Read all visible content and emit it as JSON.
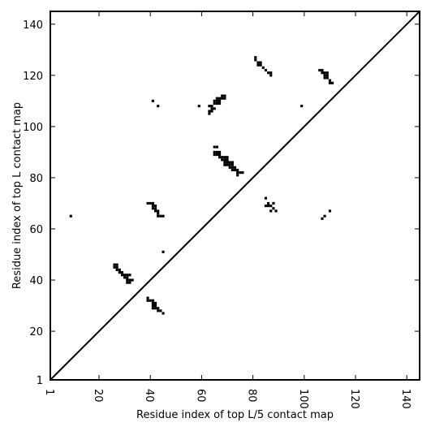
{
  "chart_data": {
    "type": "scatter",
    "xlabel": "Residue index of top L/5 contact map",
    "ylabel": "Residue index of top L contact map",
    "xlim": [
      1,
      145
    ],
    "ylim": [
      1,
      145
    ],
    "xticks": [
      1,
      20,
      40,
      60,
      80,
      100,
      120,
      140
    ],
    "yticks": [
      1,
      20,
      40,
      60,
      80,
      100,
      120,
      140
    ],
    "x_tick_rotation": -90,
    "grid": false,
    "legend": "none",
    "diagonal": true,
    "marker_color": "#000000",
    "series": [
      {
        "points": [
          [
            9,
            65
          ],
          [
            26,
            46
          ],
          [
            27,
            46
          ],
          [
            26,
            45
          ],
          [
            27,
            45
          ],
          [
            27,
            44
          ],
          [
            28,
            44
          ],
          [
            28,
            43
          ],
          [
            29,
            43
          ],
          [
            29,
            42
          ],
          [
            30,
            42
          ],
          [
            30,
            41
          ],
          [
            31,
            41
          ],
          [
            31,
            42
          ],
          [
            32,
            42
          ],
          [
            31,
            40
          ],
          [
            32,
            40
          ],
          [
            33,
            40
          ],
          [
            31,
            39
          ],
          [
            32,
            39
          ],
          [
            39,
            33
          ],
          [
            39,
            32
          ],
          [
            40,
            32
          ],
          [
            41,
            32
          ],
          [
            41,
            31
          ],
          [
            42,
            31
          ],
          [
            41,
            30
          ],
          [
            42,
            30
          ],
          [
            41,
            29
          ],
          [
            42,
            29
          ],
          [
            43,
            29
          ],
          [
            43,
            28
          ],
          [
            44,
            28
          ],
          [
            45,
            27
          ],
          [
            45,
            51
          ],
          [
            39,
            70
          ],
          [
            40,
            70
          ],
          [
            41,
            70
          ],
          [
            41,
            69
          ],
          [
            42,
            69
          ],
          [
            41,
            68
          ],
          [
            42,
            68
          ],
          [
            42,
            67
          ],
          [
            43,
            67
          ],
          [
            43,
            66
          ],
          [
            43,
            65
          ],
          [
            44,
            65
          ],
          [
            45,
            65
          ],
          [
            41,
            110
          ],
          [
            43,
            108
          ],
          [
            59,
            108
          ],
          [
            63,
            108
          ],
          [
            64,
            108
          ],
          [
            64,
            107
          ],
          [
            65,
            107
          ],
          [
            63,
            106
          ],
          [
            64,
            106
          ],
          [
            63,
            105
          ],
          [
            65,
            109
          ],
          [
            66,
            109
          ],
          [
            67,
            109
          ],
          [
            65,
            110
          ],
          [
            66,
            110
          ],
          [
            67,
            110
          ],
          [
            66,
            111
          ],
          [
            67,
            111
          ],
          [
            68,
            111
          ],
          [
            69,
            111
          ],
          [
            68,
            112
          ],
          [
            69,
            112
          ],
          [
            65,
            92
          ],
          [
            66,
            92
          ],
          [
            65,
            90
          ],
          [
            66,
            90
          ],
          [
            67,
            90
          ],
          [
            65,
            89
          ],
          [
            66,
            89
          ],
          [
            67,
            89
          ],
          [
            67,
            88
          ],
          [
            68,
            88
          ],
          [
            69,
            88
          ],
          [
            70,
            88
          ],
          [
            68,
            87
          ],
          [
            69,
            87
          ],
          [
            70,
            87
          ],
          [
            69,
            86
          ],
          [
            70,
            86
          ],
          [
            71,
            86
          ],
          [
            72,
            86
          ],
          [
            69,
            85
          ],
          [
            70,
            85
          ],
          [
            71,
            85
          ],
          [
            72,
            85
          ],
          [
            71,
            84
          ],
          [
            72,
            84
          ],
          [
            73,
            84
          ],
          [
            72,
            83
          ],
          [
            73,
            83
          ],
          [
            74,
            83
          ],
          [
            74,
            82
          ],
          [
            75,
            82
          ],
          [
            76,
            82
          ],
          [
            74,
            81
          ],
          [
            81,
            127
          ],
          [
            81,
            126
          ],
          [
            82,
            125
          ],
          [
            83,
            125
          ],
          [
            82,
            124
          ],
          [
            83,
            124
          ],
          [
            84,
            123
          ],
          [
            85,
            122
          ],
          [
            86,
            121
          ],
          [
            87,
            121
          ],
          [
            87,
            120
          ],
          [
            99,
            108
          ],
          [
            106,
            122
          ],
          [
            107,
            122
          ],
          [
            107,
            121
          ],
          [
            108,
            121
          ],
          [
            109,
            121
          ],
          [
            108,
            120
          ],
          [
            109,
            120
          ],
          [
            108,
            119
          ],
          [
            109,
            119
          ],
          [
            110,
            118
          ],
          [
            110,
            117
          ],
          [
            111,
            117
          ],
          [
            85,
            72
          ],
          [
            86,
            70
          ],
          [
            85,
            69
          ],
          [
            86,
            69
          ],
          [
            87,
            69
          ],
          [
            88,
            70
          ],
          [
            87,
            67
          ],
          [
            88,
            68
          ],
          [
            89,
            67
          ],
          [
            107,
            64
          ],
          [
            108,
            65
          ],
          [
            110,
            67
          ]
        ]
      }
    ]
  }
}
